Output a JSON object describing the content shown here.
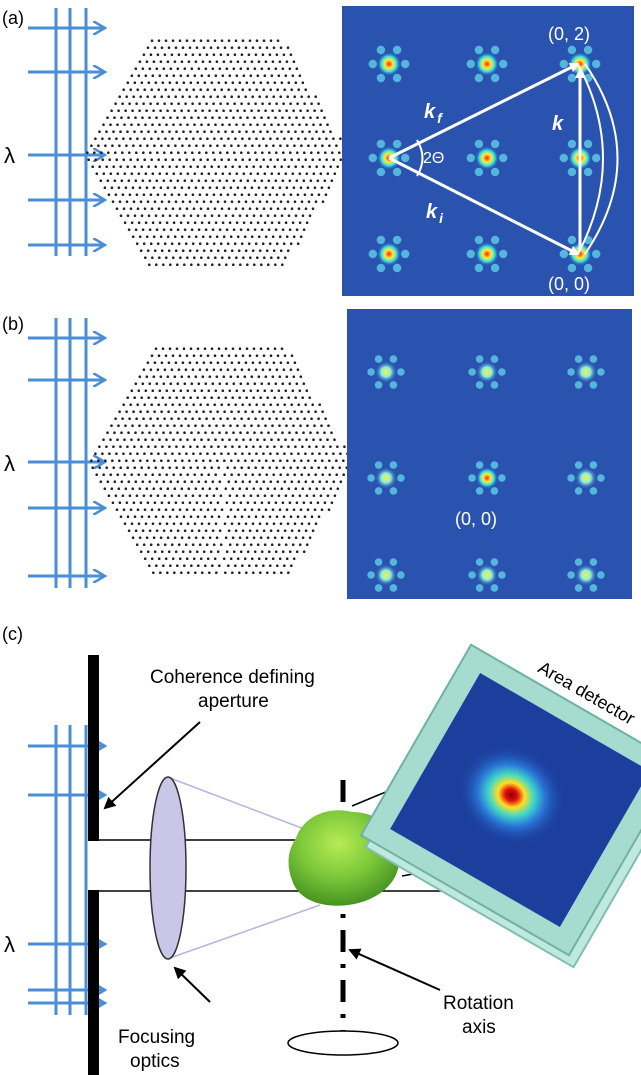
{
  "panel_a": {
    "label": "(a)",
    "wavelength": "λ",
    "spot_top": "(0, 2)",
    "spot_bottom": "(0, 0)",
    "k_f": "k",
    "k_f_sub": "f",
    "k_i": "k",
    "k_i_sub": "i",
    "k": "k",
    "angle": "2Θ"
  },
  "panel_b": {
    "label": "(b)",
    "wavelength": "λ",
    "spot_center": "(0, 0)"
  },
  "panel_c": {
    "label": "(c)",
    "wavelength": "λ",
    "aperture_line1": "Coherence defining",
    "aperture_line2": "aperture",
    "detector": "Area detector",
    "optics_line1": "Focusing",
    "optics_line2": "optics",
    "rotation_line1": "Rotation",
    "rotation_line2": "axis"
  },
  "colors": {
    "beam": "#4a8ed6",
    "detector_bg": "#2a53b0",
    "frame": "#a6dcd0",
    "crystal": "#7cc83a",
    "lens": "#c9c6e8"
  }
}
